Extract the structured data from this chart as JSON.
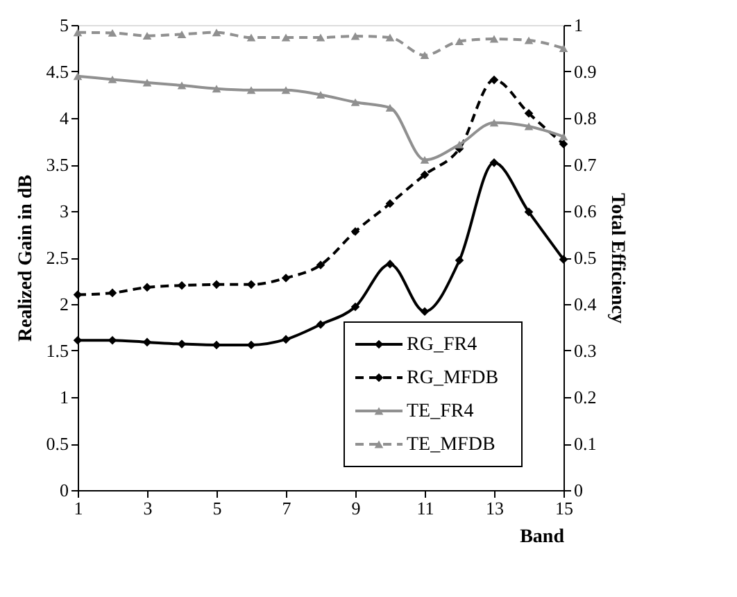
{
  "chart_data": {
    "type": "line",
    "xlabel": "Band",
    "ylabel": "Realized Gain in dB",
    "y2label": "Total Efficiency",
    "x": [
      1,
      2,
      3,
      4,
      5,
      6,
      7,
      8,
      9,
      10,
      11,
      12,
      13,
      14,
      15
    ],
    "xlim": [
      1,
      15
    ],
    "xticks": [
      1,
      3,
      5,
      7,
      9,
      11,
      13,
      15
    ],
    "ylim": [
      0,
      5
    ],
    "yticks": [
      0,
      0.5,
      1,
      1.5,
      2,
      2.5,
      3,
      3.5,
      4,
      4.5,
      5
    ],
    "y2lim": [
      0,
      1
    ],
    "y2ticks": [
      0,
      0.1,
      0.2,
      0.3,
      0.4,
      0.5,
      0.6,
      0.7,
      0.8,
      0.9,
      1
    ],
    "grid": false,
    "legend": "bottom right",
    "series": [
      {
        "name": "RG_FR4",
        "color": "#000000",
        "marker": "diamond",
        "line_style": "solid",
        "values": [
          1.61,
          1.61,
          1.59,
          1.57,
          1.56,
          1.56,
          1.62,
          1.78,
          1.97,
          2.43,
          1.92,
          2.47,
          3.52,
          2.99,
          2.48
        ]
      },
      {
        "name": "RG_MFDB",
        "color": "#000000",
        "marker": "diamond",
        "line_style": "dashed",
        "values": [
          2.1,
          2.12,
          2.18,
          2.2,
          2.21,
          2.21,
          2.28,
          2.42,
          2.78,
          3.08,
          3.39,
          3.67,
          4.41,
          4.05,
          3.72
        ]
      },
      {
        "name": "TE_FR4",
        "color": "#909090",
        "marker": "triangle",
        "line_style": "solid",
        "axis": "y2",
        "values": [
          0.89,
          0.883,
          0.876,
          0.87,
          0.863,
          0.86,
          0.86,
          0.85,
          0.834,
          0.822,
          0.71,
          0.743,
          0.79,
          0.782,
          0.76
        ]
      },
      {
        "name": "TE_MFDB",
        "color": "#909090",
        "marker": "triangle",
        "line_style": "dashed",
        "axis": "y2",
        "values": [
          0.984,
          0.983,
          0.977,
          0.98,
          0.984,
          0.973,
          0.973,
          0.973,
          0.976,
          0.973,
          0.935,
          0.965,
          0.97,
          0.967,
          0.95
        ]
      }
    ]
  }
}
